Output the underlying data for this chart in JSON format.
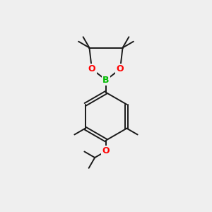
{
  "background_color": "#efefef",
  "bond_color": "#1a1a1a",
  "bond_width": 1.4,
  "atom_colors": {
    "B": "#00bb00",
    "O": "#ff0000"
  },
  "font_size_atom": 9,
  "xlim": [
    0,
    10
  ],
  "ylim": [
    0,
    10
  ]
}
